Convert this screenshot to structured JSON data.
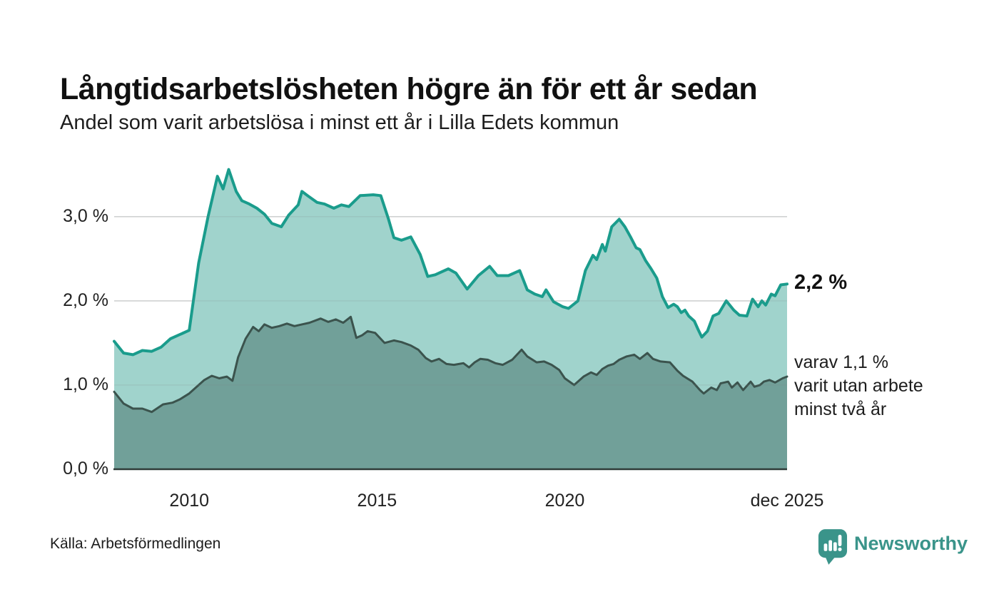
{
  "header": {
    "title": "Långtidsarbetslösheten högre än för ett år sedan",
    "subtitle": "Andel som varit arbetslösa i minst ett år i Lilla Edets kommun"
  },
  "chart_data": {
    "type": "area",
    "title": "Långtidsarbetslösheten högre än för ett år sedan",
    "subtitle": "Andel som varit arbetslösa i minst ett år i Lilla Edets kommun",
    "unit": "%",
    "xlim": [
      2008.0,
      2025.92
    ],
    "ylim": [
      0,
      3.6
    ],
    "grid": "horizontal",
    "grid_color": "#e1e1e1",
    "axis_color": "#2f3b38",
    "x_axis": {
      "ticks": [
        {
          "value": 2010,
          "label": "2010"
        },
        {
          "value": 2015,
          "label": "2015"
        },
        {
          "value": 2020,
          "label": "2020"
        },
        {
          "value": 2025.92,
          "label": "dec 2025"
        }
      ]
    },
    "y_axis": {
      "ticks": [
        {
          "value": 0,
          "label": "0,0 %"
        },
        {
          "value": 1,
          "label": "1,0 %"
        },
        {
          "value": 2,
          "label": "2,0 %"
        },
        {
          "value": 3,
          "label": "3,0 %"
        }
      ]
    },
    "series": [
      {
        "name": "Arbetslösa minst ett år",
        "line_color": "#1a9c8c",
        "fill_color": "#a0d3cc",
        "line_width": 4,
        "points": [
          [
            2008.0,
            1.52
          ],
          [
            2008.25,
            1.38
          ],
          [
            2008.5,
            1.36
          ],
          [
            2008.75,
            1.41
          ],
          [
            2009.0,
            1.4
          ],
          [
            2009.25,
            1.45
          ],
          [
            2009.5,
            1.55
          ],
          [
            2009.75,
            1.6
          ],
          [
            2010.0,
            1.65
          ],
          [
            2010.25,
            2.45
          ],
          [
            2010.5,
            3.0
          ],
          [
            2010.75,
            3.48
          ],
          [
            2010.9,
            3.33
          ],
          [
            2011.05,
            3.56
          ],
          [
            2011.25,
            3.3
          ],
          [
            2011.4,
            3.19
          ],
          [
            2011.6,
            3.15
          ],
          [
            2011.8,
            3.1
          ],
          [
            2012.0,
            3.03
          ],
          [
            2012.2,
            2.92
          ],
          [
            2012.45,
            2.88
          ],
          [
            2012.65,
            3.02
          ],
          [
            2012.9,
            3.14
          ],
          [
            2013.0,
            3.3
          ],
          [
            2013.15,
            3.25
          ],
          [
            2013.4,
            3.17
          ],
          [
            2013.6,
            3.15
          ],
          [
            2013.85,
            3.1
          ],
          [
            2014.05,
            3.14
          ],
          [
            2014.25,
            3.12
          ],
          [
            2014.55,
            3.25
          ],
          [
            2014.9,
            3.26
          ],
          [
            2015.1,
            3.25
          ],
          [
            2015.3,
            2.98
          ],
          [
            2015.45,
            2.75
          ],
          [
            2015.65,
            2.72
          ],
          [
            2015.9,
            2.76
          ],
          [
            2016.15,
            2.55
          ],
          [
            2016.35,
            2.29
          ],
          [
            2016.55,
            2.31
          ],
          [
            2016.9,
            2.38
          ],
          [
            2017.1,
            2.33
          ],
          [
            2017.4,
            2.14
          ],
          [
            2017.7,
            2.3
          ],
          [
            2018.0,
            2.41
          ],
          [
            2018.2,
            2.3
          ],
          [
            2018.5,
            2.3
          ],
          [
            2018.8,
            2.36
          ],
          [
            2019.0,
            2.13
          ],
          [
            2019.2,
            2.08
          ],
          [
            2019.4,
            2.05
          ],
          [
            2019.5,
            2.13
          ],
          [
            2019.7,
            1.99
          ],
          [
            2019.95,
            1.93
          ],
          [
            2020.1,
            1.91
          ],
          [
            2020.35,
            2.0
          ],
          [
            2020.55,
            2.36
          ],
          [
            2020.75,
            2.54
          ],
          [
            2020.85,
            2.49
          ],
          [
            2021.0,
            2.67
          ],
          [
            2021.08,
            2.59
          ],
          [
            2021.25,
            2.88
          ],
          [
            2021.45,
            2.97
          ],
          [
            2021.6,
            2.88
          ],
          [
            2021.75,
            2.76
          ],
          [
            2021.9,
            2.63
          ],
          [
            2022.0,
            2.61
          ],
          [
            2022.15,
            2.48
          ],
          [
            2022.3,
            2.38
          ],
          [
            2022.45,
            2.27
          ],
          [
            2022.6,
            2.05
          ],
          [
            2022.75,
            1.92
          ],
          [
            2022.9,
            1.96
          ],
          [
            2023.0,
            1.93
          ],
          [
            2023.1,
            1.86
          ],
          [
            2023.2,
            1.89
          ],
          [
            2023.3,
            1.82
          ],
          [
            2023.45,
            1.76
          ],
          [
            2023.55,
            1.66
          ],
          [
            2023.65,
            1.57
          ],
          [
            2023.8,
            1.64
          ],
          [
            2023.95,
            1.82
          ],
          [
            2024.1,
            1.85
          ],
          [
            2024.3,
            2.0
          ],
          [
            2024.5,
            1.89
          ],
          [
            2024.65,
            1.83
          ],
          [
            2024.85,
            1.82
          ],
          [
            2025.0,
            2.02
          ],
          [
            2025.15,
            1.93
          ],
          [
            2025.25,
            2.0
          ],
          [
            2025.35,
            1.95
          ],
          [
            2025.5,
            2.08
          ],
          [
            2025.6,
            2.06
          ],
          [
            2025.75,
            2.19
          ],
          [
            2025.92,
            2.2
          ]
        ]
      },
      {
        "name": "Utan arbete minst två år",
        "line_color": "#3b534d",
        "fill_color": "#71a099",
        "line_width": 3,
        "points": [
          [
            2008.0,
            0.92
          ],
          [
            2008.25,
            0.78
          ],
          [
            2008.5,
            0.72
          ],
          [
            2008.75,
            0.72
          ],
          [
            2009.0,
            0.68
          ],
          [
            2009.3,
            0.77
          ],
          [
            2009.55,
            0.79
          ],
          [
            2009.75,
            0.83
          ],
          [
            2010.0,
            0.9
          ],
          [
            2010.2,
            0.98
          ],
          [
            2010.4,
            1.06
          ],
          [
            2010.6,
            1.11
          ],
          [
            2010.8,
            1.08
          ],
          [
            2011.0,
            1.1
          ],
          [
            2011.15,
            1.05
          ],
          [
            2011.3,
            1.33
          ],
          [
            2011.5,
            1.55
          ],
          [
            2011.7,
            1.69
          ],
          [
            2011.85,
            1.64
          ],
          [
            2012.0,
            1.72
          ],
          [
            2012.2,
            1.68
          ],
          [
            2012.4,
            1.7
          ],
          [
            2012.6,
            1.73
          ],
          [
            2012.8,
            1.7
          ],
          [
            2013.0,
            1.72
          ],
          [
            2013.2,
            1.74
          ],
          [
            2013.5,
            1.79
          ],
          [
            2013.7,
            1.75
          ],
          [
            2013.9,
            1.78
          ],
          [
            2014.1,
            1.74
          ],
          [
            2014.3,
            1.81
          ],
          [
            2014.45,
            1.56
          ],
          [
            2014.6,
            1.59
          ],
          [
            2014.75,
            1.64
          ],
          [
            2014.95,
            1.62
          ],
          [
            2015.2,
            1.5
          ],
          [
            2015.45,
            1.53
          ],
          [
            2015.65,
            1.51
          ],
          [
            2015.9,
            1.47
          ],
          [
            2016.1,
            1.42
          ],
          [
            2016.3,
            1.32
          ],
          [
            2016.45,
            1.28
          ],
          [
            2016.65,
            1.31
          ],
          [
            2016.85,
            1.25
          ],
          [
            2017.05,
            1.24
          ],
          [
            2017.3,
            1.26
          ],
          [
            2017.45,
            1.21
          ],
          [
            2017.6,
            1.27
          ],
          [
            2017.75,
            1.31
          ],
          [
            2017.95,
            1.3
          ],
          [
            2018.15,
            1.26
          ],
          [
            2018.35,
            1.24
          ],
          [
            2018.6,
            1.3
          ],
          [
            2018.85,
            1.42
          ],
          [
            2019.0,
            1.34
          ],
          [
            2019.25,
            1.27
          ],
          [
            2019.45,
            1.28
          ],
          [
            2019.65,
            1.24
          ],
          [
            2019.85,
            1.18
          ],
          [
            2020.0,
            1.08
          ],
          [
            2020.25,
            1.0
          ],
          [
            2020.5,
            1.1
          ],
          [
            2020.7,
            1.15
          ],
          [
            2020.85,
            1.12
          ],
          [
            2021.0,
            1.19
          ],
          [
            2021.15,
            1.23
          ],
          [
            2021.3,
            1.25
          ],
          [
            2021.45,
            1.3
          ],
          [
            2021.65,
            1.34
          ],
          [
            2021.85,
            1.36
          ],
          [
            2022.0,
            1.31
          ],
          [
            2022.2,
            1.38
          ],
          [
            2022.35,
            1.31
          ],
          [
            2022.55,
            1.28
          ],
          [
            2022.8,
            1.27
          ],
          [
            2023.0,
            1.17
          ],
          [
            2023.15,
            1.11
          ],
          [
            2023.4,
            1.04
          ],
          [
            2023.6,
            0.94
          ],
          [
            2023.7,
            0.9
          ],
          [
            2023.9,
            0.97
          ],
          [
            2024.05,
            0.94
          ],
          [
            2024.15,
            1.02
          ],
          [
            2024.35,
            1.04
          ],
          [
            2024.45,
            0.97
          ],
          [
            2024.6,
            1.03
          ],
          [
            2024.75,
            0.94
          ],
          [
            2024.95,
            1.04
          ],
          [
            2025.05,
            0.98
          ],
          [
            2025.2,
            1.0
          ],
          [
            2025.3,
            1.04
          ],
          [
            2025.45,
            1.06
          ],
          [
            2025.6,
            1.03
          ],
          [
            2025.8,
            1.08
          ],
          [
            2025.92,
            1.1
          ]
        ]
      }
    ],
    "annotations": {
      "latest_total": "2,2 %",
      "two_year_note": "varav 1,1 %\nvarit utan arbete\nminst två år"
    },
    "legend_position": "right-of-line-ends"
  },
  "footer": {
    "source": "Källa: Arbetsförmedlingen",
    "logo_text": "Newsworthy",
    "logo_color": "#3a948a"
  }
}
